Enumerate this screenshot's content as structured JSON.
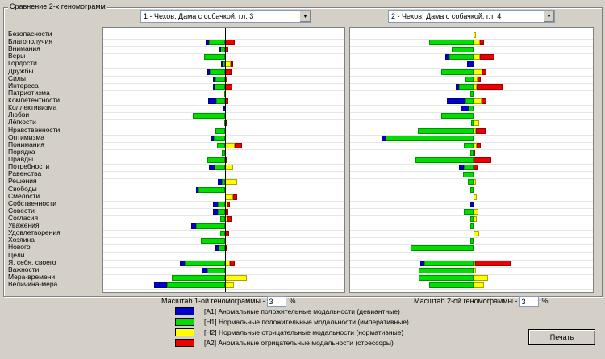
{
  "group_title": "Сравнение 2-х геномограмм",
  "select1": "1 - Чехов, Дама с собачкой, гл. 3",
  "select2": "2 - Чехов, Дама с собачкой, гл. 4",
  "categories": [
    "Безопасности",
    "Благополучия",
    "Внимания",
    "Веры",
    "Гордости",
    "Дружбы",
    "Силы",
    "Интереса",
    "Патриотизма",
    "Компетентности",
    "Коллективизма",
    "Любви",
    "Лёгкости",
    "Нравственности",
    "Оптимизма",
    "Понимания",
    "Порядка",
    "Правды",
    "Потребности",
    "Равенства",
    "Решения",
    "Свободы",
    "Смелости",
    "Собственности",
    "Совести",
    "Согласия",
    "Уважения",
    "Удовлетворения",
    "Хозяина",
    "Нового",
    "Цели",
    "Я, себя, своего",
    "Важности",
    "Мера-времени",
    "Величина-мера"
  ],
  "chart_data": {
    "type": "bar",
    "note": "Diverging stacked bars per category; negative = A1/H1 (left), positive = H2/A2 (right).",
    "series_names": [
      "A1",
      "H1",
      "H2",
      "A2"
    ],
    "chart1": [
      [
        0,
        0,
        0,
        0
      ],
      [
        -4,
        -20,
        0,
        12
      ],
      [
        -1,
        -6,
        0,
        4
      ],
      [
        0,
        -26,
        0,
        0
      ],
      [
        -2,
        -3,
        7,
        3
      ],
      [
        -3,
        -19,
        0,
        8
      ],
      [
        -3,
        -12,
        0,
        3
      ],
      [
        -2,
        -13,
        0,
        9
      ],
      [
        0,
        -1,
        0,
        0
      ],
      [
        -10,
        -11,
        0,
        4
      ],
      [
        -3,
        0,
        0,
        0
      ],
      [
        0,
        -40,
        0,
        0
      ],
      [
        0,
        -1,
        0,
        1
      ],
      [
        0,
        -12,
        0,
        0
      ],
      [
        -4,
        -14,
        0,
        0
      ],
      [
        0,
        -10,
        12,
        9
      ],
      [
        0,
        -4,
        0,
        0
      ],
      [
        0,
        -22,
        0,
        1
      ],
      [
        -7,
        -13,
        10,
        0
      ],
      [
        0,
        0,
        0,
        0
      ],
      [
        -5,
        -4,
        15,
        0
      ],
      [
        -3,
        -33,
        0,
        0
      ],
      [
        0,
        0,
        10,
        5
      ],
      [
        -6,
        -9,
        3,
        3
      ],
      [
        -6,
        -9,
        1,
        3
      ],
      [
        0,
        -6,
        3,
        5
      ],
      [
        -6,
        -36,
        0,
        0
      ],
      [
        0,
        -6,
        0,
        5
      ],
      [
        0,
        -30,
        0,
        0
      ],
      [
        -5,
        -8,
        0,
        2
      ],
      [
        0,
        0,
        0,
        0
      ],
      [
        -6,
        -50,
        6,
        6
      ],
      [
        -6,
        -22,
        0,
        0
      ],
      [
        0,
        -66,
        27,
        0
      ],
      [
        -16,
        -72,
        11,
        0
      ]
    ],
    "chart2": [
      [
        0,
        0,
        3,
        0
      ],
      [
        0,
        -55,
        8,
        5
      ],
      [
        0,
        -27,
        0,
        0
      ],
      [
        -5,
        -30,
        8,
        18
      ],
      [
        -8,
        0,
        0,
        0
      ],
      [
        0,
        -40,
        11,
        5
      ],
      [
        0,
        -10,
        5,
        4
      ],
      [
        -4,
        -18,
        4,
        32
      ],
      [
        0,
        -4,
        0,
        0
      ],
      [
        -23,
        -10,
        10,
        6
      ],
      [
        -10,
        -6,
        0,
        0
      ],
      [
        0,
        -40,
        0,
        0
      ],
      [
        0,
        -3,
        7,
        0
      ],
      [
        0,
        -69,
        3,
        12
      ],
      [
        -5,
        -109,
        0,
        0
      ],
      [
        0,
        -12,
        4,
        5
      ],
      [
        0,
        -4,
        0,
        2
      ],
      [
        0,
        -72,
        0,
        22
      ],
      [
        -6,
        -12,
        0,
        5
      ],
      [
        0,
        -13,
        0,
        0
      ],
      [
        0,
        -7,
        3,
        0
      ],
      [
        0,
        -4,
        0,
        0
      ],
      [
        0,
        0,
        4,
        0
      ],
      [
        -4,
        0,
        0,
        0
      ],
      [
        0,
        -12,
        6,
        0
      ],
      [
        0,
        -4,
        4,
        0
      ],
      [
        0,
        -4,
        0,
        0
      ],
      [
        0,
        0,
        7,
        0
      ],
      [
        0,
        -4,
        0,
        0
      ],
      [
        0,
        -78,
        0,
        0
      ],
      [
        0,
        0,
        0,
        0
      ],
      [
        -5,
        -61,
        2,
        44
      ],
      [
        0,
        -68,
        3,
        0
      ],
      [
        0,
        -68,
        18,
        0
      ],
      [
        0,
        -55,
        13,
        0
      ]
    ],
    "colors": {
      "A1": "#0000cc",
      "H1": "#00dd00",
      "H2": "#ffff00",
      "A2": "#ee0000"
    }
  },
  "scale1_label": "Масштаб 1-ой геномограммы -",
  "scale1_value": "3",
  "scale2_label": "Масштаб 2-ой геномограммы -",
  "scale2_value": "3",
  "percent": "%",
  "legend": [
    {
      "color": "#0000cc",
      "text": "[A1] Аномальные положительные модальности  (девиантные)"
    },
    {
      "color": "#00dd00",
      "text": "[H1] Нормальные положительные модальности (императивные)"
    },
    {
      "color": "#ffff00",
      "text": "[H2] Нормальные отрицательные модальности (нормативные)"
    },
    {
      "color": "#ee0000",
      "text": "[A2] Аномальные отрицательные модальности (стрессоры)"
    }
  ],
  "print_button": "Печать"
}
